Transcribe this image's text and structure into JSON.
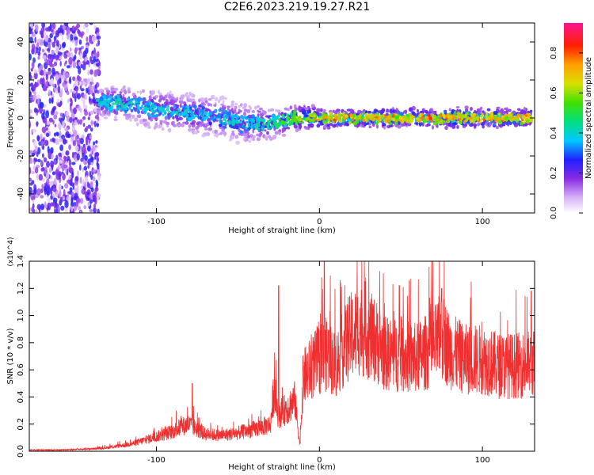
{
  "title": "C2E6.2023.219.19.27.R21",
  "chart_data": [
    {
      "type": "heatmap",
      "xlabel": "Height of straight line (km)",
      "ylabel": "Frequency (Hz)",
      "xlim": [
        -178,
        132
      ],
      "ylim": [
        -50,
        50
      ],
      "xticks": [
        -100,
        0,
        100
      ],
      "xtick_labels": [
        "-100",
        "0",
        "100"
      ],
      "yticks": [
        -40,
        -20,
        0,
        20,
        40
      ],
      "ytick_labels": [
        "-40",
        "-20",
        "0",
        "20",
        "40"
      ],
      "colorbar": {
        "label": "Normalized spectral amplitude",
        "ticks": [
          0,
          0.2,
          0.4,
          0.6,
          0.8
        ],
        "tick_labels": [
          "0.0",
          "0.2",
          "0.4",
          "0.6",
          "0.8"
        ],
        "range": [
          0,
          0.95
        ]
      },
      "ridge": {
        "x": [
          -136,
          -125,
          -115,
          -105,
          -95,
          -85,
          -75,
          -65,
          -55,
          -45,
          -35,
          -25,
          -15,
          -5,
          5,
          15,
          30,
          50,
          70,
          90,
          110,
          130
        ],
        "freq": [
          8,
          8,
          7,
          5,
          4,
          3,
          2,
          1,
          -1,
          -3,
          -3,
          -2,
          0,
          0,
          0,
          0,
          0,
          0,
          0,
          0,
          0,
          0
        ],
        "peak_amplitude": [
          0.45,
          0.5,
          0.45,
          0.45,
          0.45,
          0.45,
          0.45,
          0.4,
          0.45,
          0.45,
          0.5,
          0.55,
          0.7,
          0.75,
          0.8,
          0.8,
          0.8,
          0.8,
          0.85,
          0.85,
          0.85,
          0.8
        ],
        "half_width_hz": [
          5,
          6,
          6,
          7,
          7,
          7,
          7,
          7,
          7,
          7,
          6,
          5,
          4,
          4,
          3,
          3,
          3,
          3,
          3,
          3,
          3,
          3
        ]
      },
      "broadband_region": {
        "x_start": -178,
        "x_end": -135,
        "amplitude": 0.2
      }
    },
    {
      "type": "line",
      "xlabel": "Height of straight line (km)",
      "ylabel": "SNR (10 * v/v)",
      "y_scale_label": "(x10^4)",
      "xlim": [
        -178,
        132
      ],
      "ylim": [
        0,
        1.4
      ],
      "xticks": [
        -100,
        0,
        100
      ],
      "xtick_labels": [
        "-100",
        "0",
        "100"
      ],
      "yticks": [
        0,
        0.2,
        0.4,
        0.6,
        0.8,
        1.0,
        1.2,
        1.4
      ],
      "ytick_labels": [
        "0.0",
        "0.2",
        "0.4",
        "0.6",
        "0.8",
        "1.0",
        "1.2",
        "1.4"
      ],
      "series": [
        {
          "color": "#f03030",
          "x": [
            -178,
            -160,
            -140,
            -130,
            -120,
            -115,
            -110,
            -100,
            -90,
            -85,
            -80,
            -75,
            -70,
            -60,
            -50,
            -40,
            -30,
            -28,
            -25,
            -20,
            -15,
            -12,
            -10,
            -5,
            0,
            5,
            10,
            15,
            20,
            25,
            30,
            35,
            40,
            50,
            60,
            70,
            75,
            80,
            90,
            100,
            110,
            120,
            132
          ],
          "y": [
            0.01,
            0.01,
            0.02,
            0.03,
            0.05,
            0.06,
            0.08,
            0.12,
            0.16,
            0.2,
            0.22,
            0.18,
            0.14,
            0.13,
            0.15,
            0.18,
            0.22,
            0.5,
            0.3,
            0.35,
            0.42,
            0.05,
            0.6,
            0.68,
            0.75,
            0.8,
            0.7,
            0.85,
            0.95,
            1.0,
            0.95,
            0.9,
            0.8,
            0.78,
            0.76,
            0.85,
            0.95,
            0.82,
            0.75,
            0.75,
            0.7,
            0.7,
            0.72
          ],
          "peaks": [
            {
              "x": -78,
              "y": 0.5
            },
            {
              "x": -25,
              "y": 1.22
            },
            {
              "x": 3,
              "y": 1.4
            },
            {
              "x": 28,
              "y": 1.25
            },
            {
              "x": 75,
              "y": 1.2
            },
            {
              "x": 130,
              "y": 1.18
            }
          ]
        }
      ]
    }
  ]
}
